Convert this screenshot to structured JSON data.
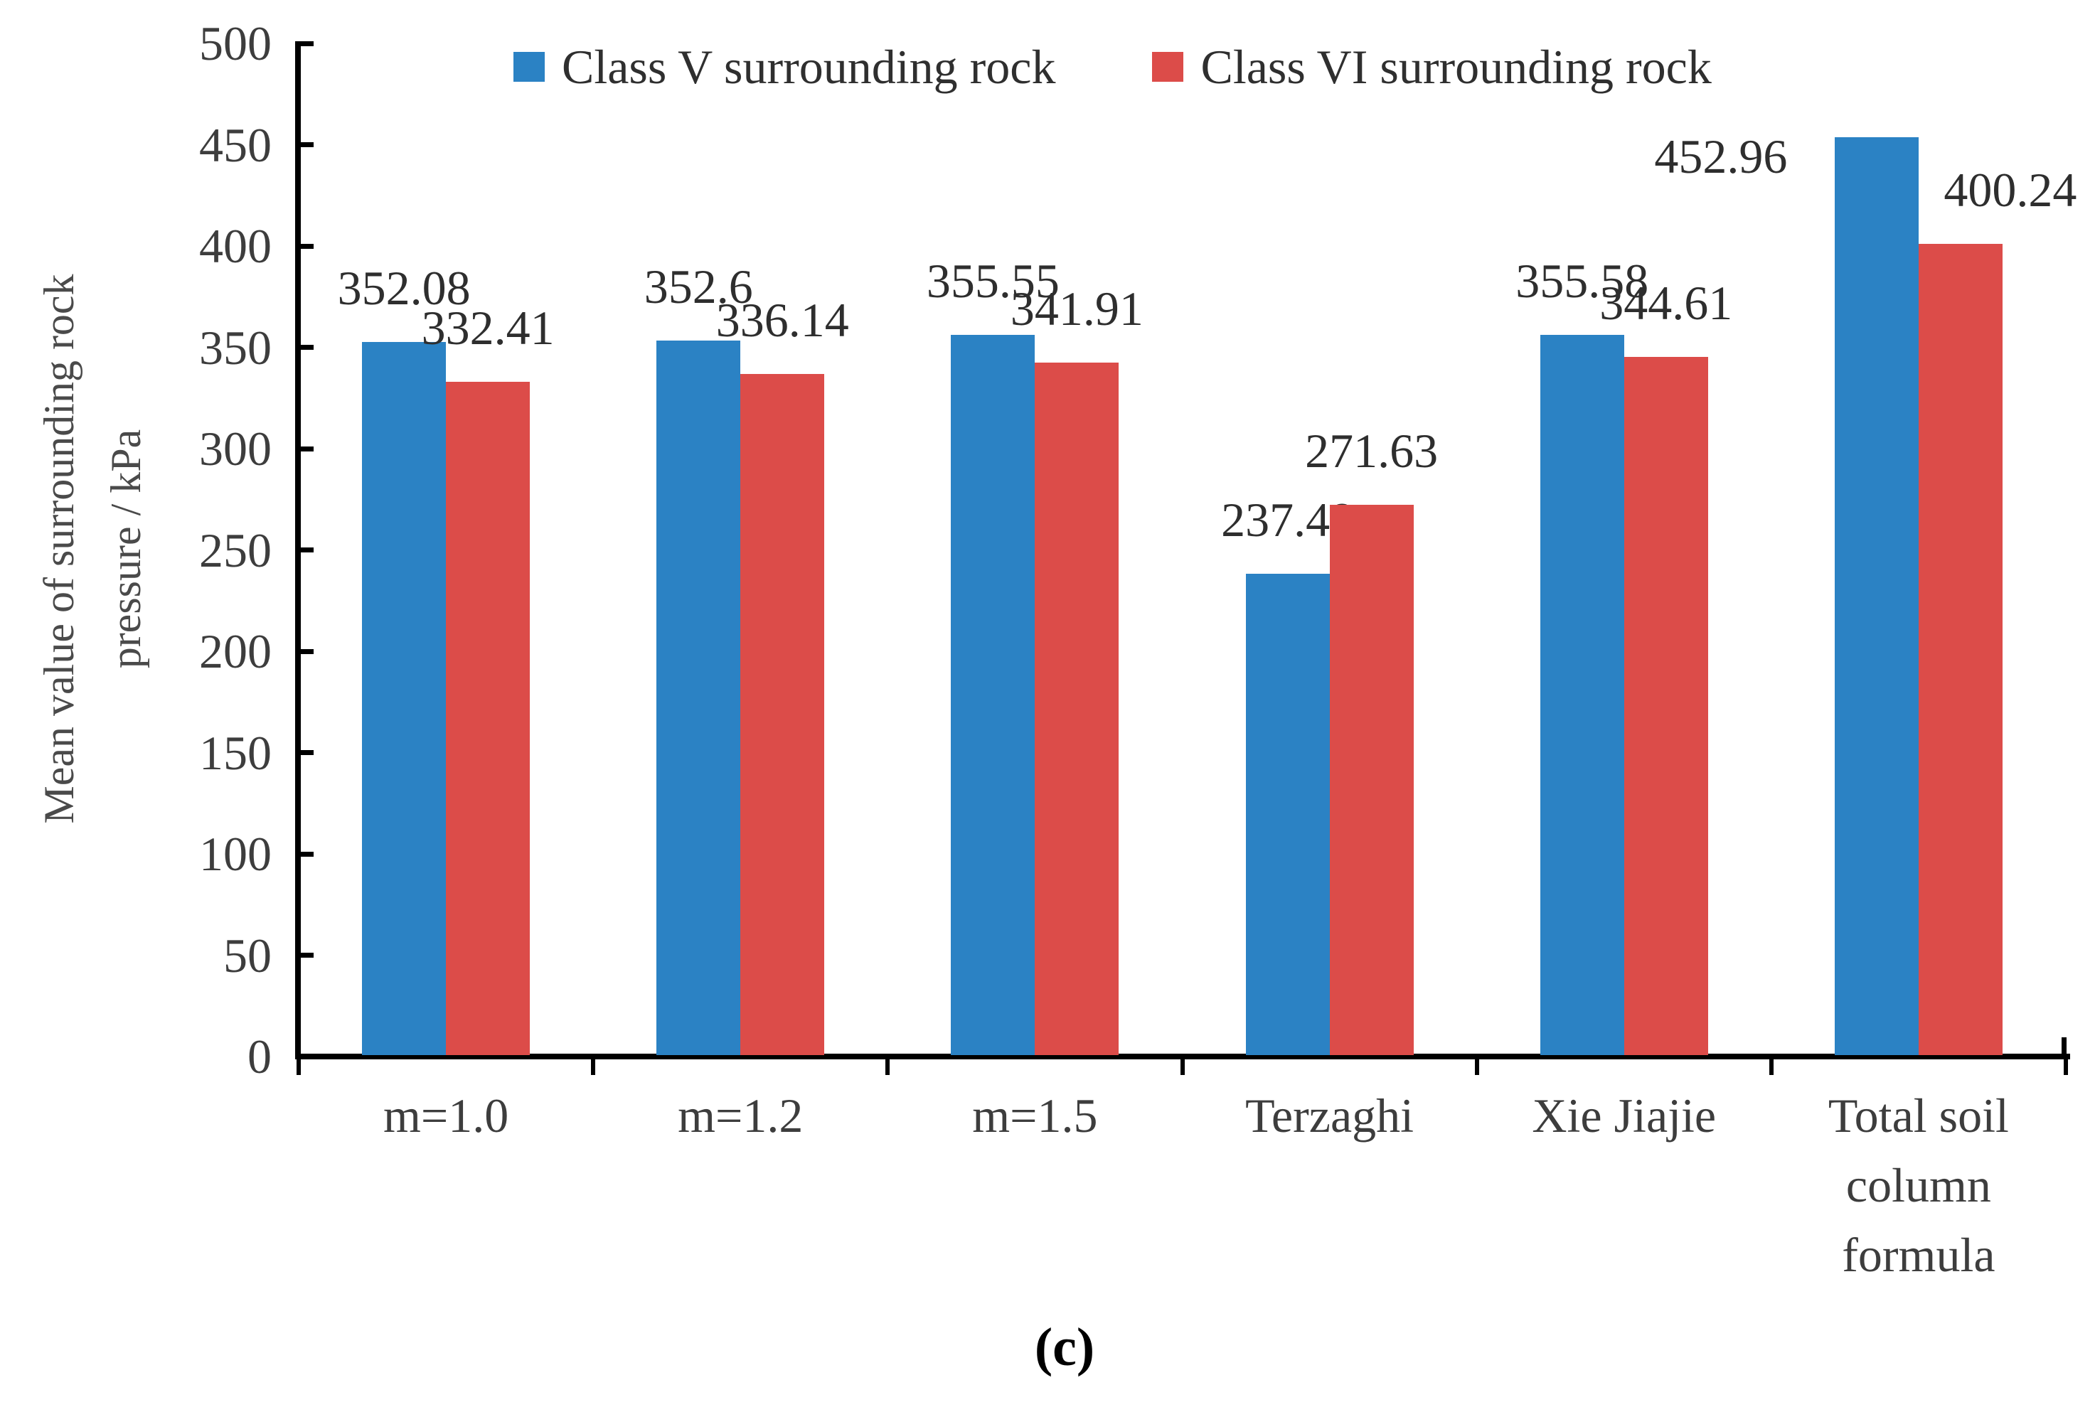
{
  "figure": {
    "caption": "(c)"
  },
  "chart_data": {
    "type": "bar",
    "title": "",
    "xlabel": "",
    "ylabel": "Mean value of surrounding rock pressure / kPa",
    "ylabel_lines": [
      "Mean value of surrounding rock",
      "pressure / kPa"
    ],
    "ylim": [
      0,
      500
    ],
    "ytick_interval": 50,
    "yticks": [
      0,
      50,
      100,
      150,
      200,
      250,
      300,
      350,
      400,
      450,
      500
    ],
    "grid": false,
    "legend_position": "top",
    "categories": [
      "m=1.0",
      "m=1.2",
      "m=1.5",
      "Terzaghi",
      "Xie Jiajie",
      "Total soil column formula"
    ],
    "category_label_lines": [
      [
        "m=1.0"
      ],
      [
        "m=1.2"
      ],
      [
        "m=1.5"
      ],
      [
        "Terzaghi"
      ],
      [
        "Xie Jiajie"
      ],
      [
        "Total soil",
        "column",
        "formula"
      ]
    ],
    "series": [
      {
        "name": "Class V surrounding rock",
        "color": "#2B82C4",
        "values": [
          352.08,
          352.6,
          355.55,
          237.48,
          355.58,
          452.96
        ],
        "labels": [
          "352.08",
          "352.6",
          "355.55",
          "237.48",
          "355.58",
          "452.96"
        ]
      },
      {
        "name": "Class VI surrounding rock",
        "color": "#DC4C49",
        "values": [
          332.41,
          336.14,
          341.91,
          271.63,
          344.61,
          400.24
        ],
        "labels": [
          "332.41",
          "336.14",
          "341.91",
          "271.63",
          "344.61",
          "400.24"
        ]
      }
    ]
  }
}
